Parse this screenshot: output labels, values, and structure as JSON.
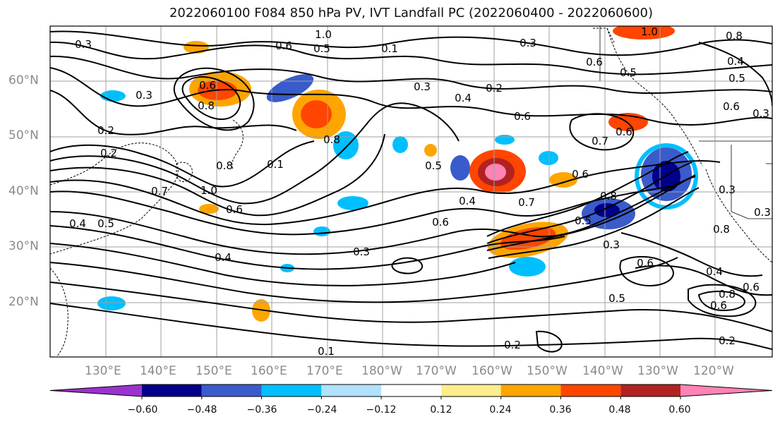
{
  "title": "2022060100 F084 850 hPa PV, IVT Landfall PC (2022060400 - 2022060600)",
  "lat_labels": [
    "60°N",
    "50°N",
    "40°N",
    "30°N",
    "20°N"
  ],
  "lon_labels": [
    "130°E",
    "140°E",
    "150°E",
    "160°E",
    "170°E",
    "180°W",
    "170°W",
    "160°W",
    "150°W",
    "140°W",
    "130°W",
    "120°W"
  ],
  "colorbar": {
    "colors": [
      "#9a32cd",
      "#00008b",
      "#3a5bcb",
      "#00bfff",
      "#b0e2ff",
      "#ffffff",
      "#ffec8b",
      "#ffa500",
      "#ff4500",
      "#b22222",
      "#ff83b4"
    ],
    "tick_labels": [
      "−0.60",
      "−0.48",
      "−0.36",
      "−0.24",
      "−0.12",
      "0.12",
      "0.24",
      "0.36",
      "0.48",
      "0.60"
    ]
  },
  "contour_labels": [
    "0.3",
    "1.0",
    "0.6",
    "0.5",
    "0.1",
    "0.3",
    "0.6",
    "0.5",
    "0.8",
    "0.6",
    "0.8",
    "0.3",
    "0.2",
    "0.3",
    "0.4",
    "0.2",
    "0.4",
    "0.5",
    "0.2",
    "0.8",
    "0.1",
    "0.8",
    "1.0",
    "0.6",
    "0.6",
    "0.7",
    "0.6",
    "0.5",
    "0.6",
    "0.4",
    "0.7",
    "0.8",
    "0.5",
    "0.6",
    "0.3",
    "0.4",
    "0.3",
    "0.6",
    "0.5",
    "0.4",
    "0.8",
    "0.6",
    "0.3",
    "0.2",
    "0.2",
    "1.0",
    "0.8",
    "0.3",
    "0.4",
    "0.5",
    "0.3",
    "0.7",
    "0.6",
    "0.6",
    "0.1"
  ]
}
